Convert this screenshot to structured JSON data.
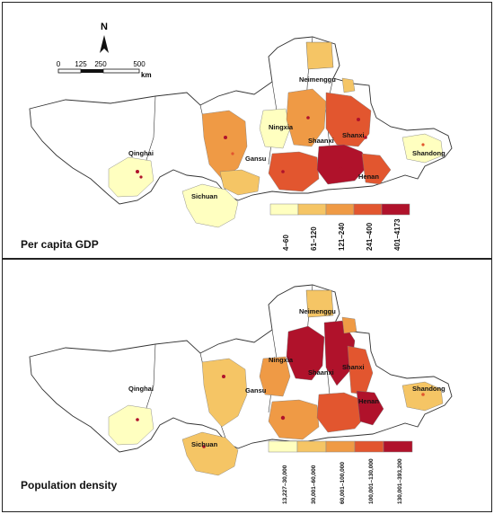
{
  "panels": [
    {
      "title": "Per capita GDP",
      "legend": {
        "labels": [
          "4–60",
          "61–120",
          "121–240",
          "241–400",
          "401–4173"
        ],
        "colors": [
          "#ffffc0",
          "#f5c565",
          "#ef9a45",
          "#e2562f",
          "#b0122b"
        ]
      }
    },
    {
      "title": "Population density",
      "legend": {
        "labels": [
          "13,227–30,000",
          "30,001–60,000",
          "60,001–100,000",
          "100,001–130,000",
          "130,001–393,200"
        ],
        "colors": [
          "#ffffc0",
          "#f5c565",
          "#ef9a45",
          "#e2562f",
          "#b0122b"
        ]
      }
    }
  ],
  "regions": {
    "qinghai": "Qinghai",
    "sichuan": "Sichuan",
    "gansu": "Gansu",
    "ningxia": "Ningxia",
    "neimenggu": "Neimenggu",
    "shaanxi": "Shaanxi",
    "shanxi": "Shanxi",
    "henan": "Henan",
    "shandong": "Shandong"
  },
  "north_arrow": "N",
  "scalebar": {
    "ticks": [
      "0",
      "125",
      "250",
      "500"
    ],
    "unit": "km"
  }
}
